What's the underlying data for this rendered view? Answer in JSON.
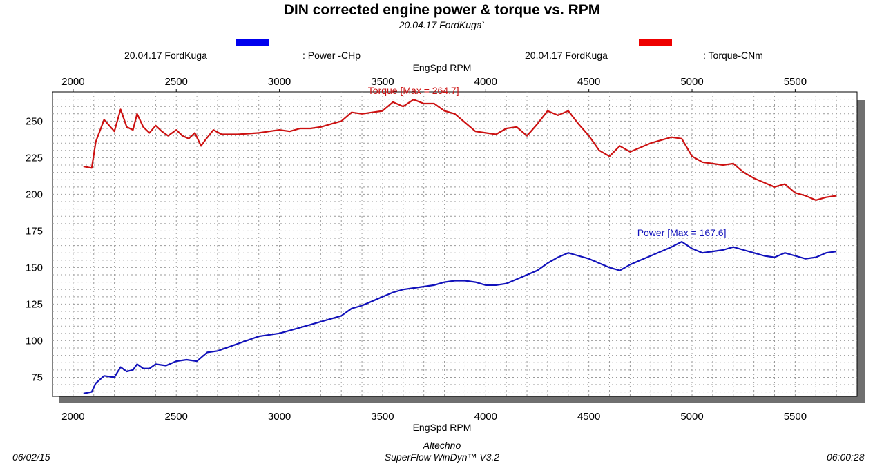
{
  "header": {
    "title": "DIN corrected engine power & torque vs. RPM",
    "subtitle": "20.04.17 FordKuga`"
  },
  "legend": {
    "power_run": "20.04.17 FordKuga",
    "power_label": ": Power -CHp",
    "torque_run": "20.04.17 FordKuga",
    "torque_label": ": Torque-CNm",
    "power_color": "#0000ee",
    "torque_color": "#ee0000"
  },
  "footer": {
    "date": "06/02/15",
    "company": "Altechno",
    "software": "SuperFlow WinDyn™ V3.2",
    "time": "06:00:28"
  },
  "chart_data": {
    "type": "line",
    "xlabel_top": "EngSpd RPM",
    "xlabel_bottom": "EngSpd RPM",
    "xlim": [
      1900,
      5800
    ],
    "ylim": [
      62,
      270
    ],
    "xticks": [
      2000,
      2500,
      3000,
      3500,
      4000,
      4500,
      5000,
      5500
    ],
    "yticks": [
      75,
      100,
      125,
      150,
      175,
      200,
      225,
      250
    ],
    "grid": true,
    "annotations": [
      {
        "text": "Torque [Max = 264.7]",
        "series": "torque",
        "x": 3650,
        "y": 264.7
      },
      {
        "text": "Power  [Max = 167.6]",
        "series": "power",
        "x": 4950,
        "y": 167.6
      }
    ],
    "series": [
      {
        "name": "Torque-CNm",
        "color": "#cc1111",
        "x": [
          2050,
          2090,
          2110,
          2150,
          2200,
          2230,
          2260,
          2290,
          2310,
          2340,
          2370,
          2400,
          2430,
          2460,
          2500,
          2530,
          2560,
          2590,
          2620,
          2640,
          2680,
          2720,
          2800,
          2900,
          2950,
          3000,
          3050,
          3100,
          3150,
          3200,
          3250,
          3300,
          3350,
          3400,
          3450,
          3500,
          3550,
          3600,
          3650,
          3700,
          3750,
          3800,
          3850,
          3900,
          3950,
          4000,
          4050,
          4100,
          4150,
          4200,
          4250,
          4300,
          4350,
          4400,
          4450,
          4500,
          4550,
          4600,
          4650,
          4700,
          4750,
          4800,
          4900,
          4950,
          5000,
          5050,
          5100,
          5150,
          5200,
          5250,
          5300,
          5350,
          5400,
          5450,
          5500,
          5550,
          5600,
          5650,
          5700
        ],
        "values": [
          219,
          218,
          236,
          251,
          243,
          258,
          246,
          244,
          255,
          246,
          242,
          247,
          243,
          240,
          244,
          240,
          238,
          242,
          233,
          237,
          244,
          241,
          241,
          242,
          243,
          244,
          243,
          245,
          245,
          246,
          248,
          250,
          256,
          255,
          256,
          257,
          263,
          260,
          264.7,
          262,
          262,
          257,
          255,
          249,
          243,
          242,
          241,
          245,
          246,
          240,
          248,
          257,
          254,
          257,
          248,
          240,
          230,
          226,
          233,
          229,
          232,
          235,
          239,
          238,
          226,
          222,
          221,
          220,
          221,
          215,
          211,
          208,
          205,
          207,
          201,
          199,
          196,
          198,
          199
        ]
      },
      {
        "name": "Power -CHp",
        "color": "#1111bb",
        "x": [
          2050,
          2090,
          2110,
          2150,
          2200,
          2230,
          2260,
          2290,
          2310,
          2340,
          2370,
          2400,
          2450,
          2500,
          2550,
          2600,
          2650,
          2700,
          2800,
          2900,
          3000,
          3100,
          3200,
          3300,
          3350,
          3400,
          3450,
          3500,
          3550,
          3600,
          3650,
          3700,
          3750,
          3800,
          3850,
          3900,
          3950,
          4000,
          4050,
          4100,
          4150,
          4200,
          4250,
          4300,
          4350,
          4400,
          4450,
          4500,
          4550,
          4600,
          4650,
          4700,
          4750,
          4800,
          4900,
          4950,
          5000,
          5050,
          5100,
          5150,
          5200,
          5250,
          5300,
          5350,
          5400,
          5450,
          5500,
          5550,
          5600,
          5650,
          5700
        ],
        "values": [
          64,
          65,
          71,
          76,
          75,
          82,
          79,
          80,
          84,
          81,
          81,
          84,
          83,
          86,
          87,
          86,
          92,
          93,
          98,
          103,
          105,
          109,
          113,
          117,
          122,
          124,
          127,
          130,
          133,
          135,
          136,
          137,
          138,
          140,
          141,
          141,
          140,
          138,
          138,
          139,
          142,
          145,
          148,
          153,
          157,
          160,
          158,
          156,
          153,
          150,
          148,
          152,
          155,
          158,
          164,
          167.6,
          163,
          160,
          161,
          162,
          164,
          162,
          160,
          158,
          157,
          160,
          158,
          156,
          157,
          160,
          161
        ]
      }
    ]
  }
}
